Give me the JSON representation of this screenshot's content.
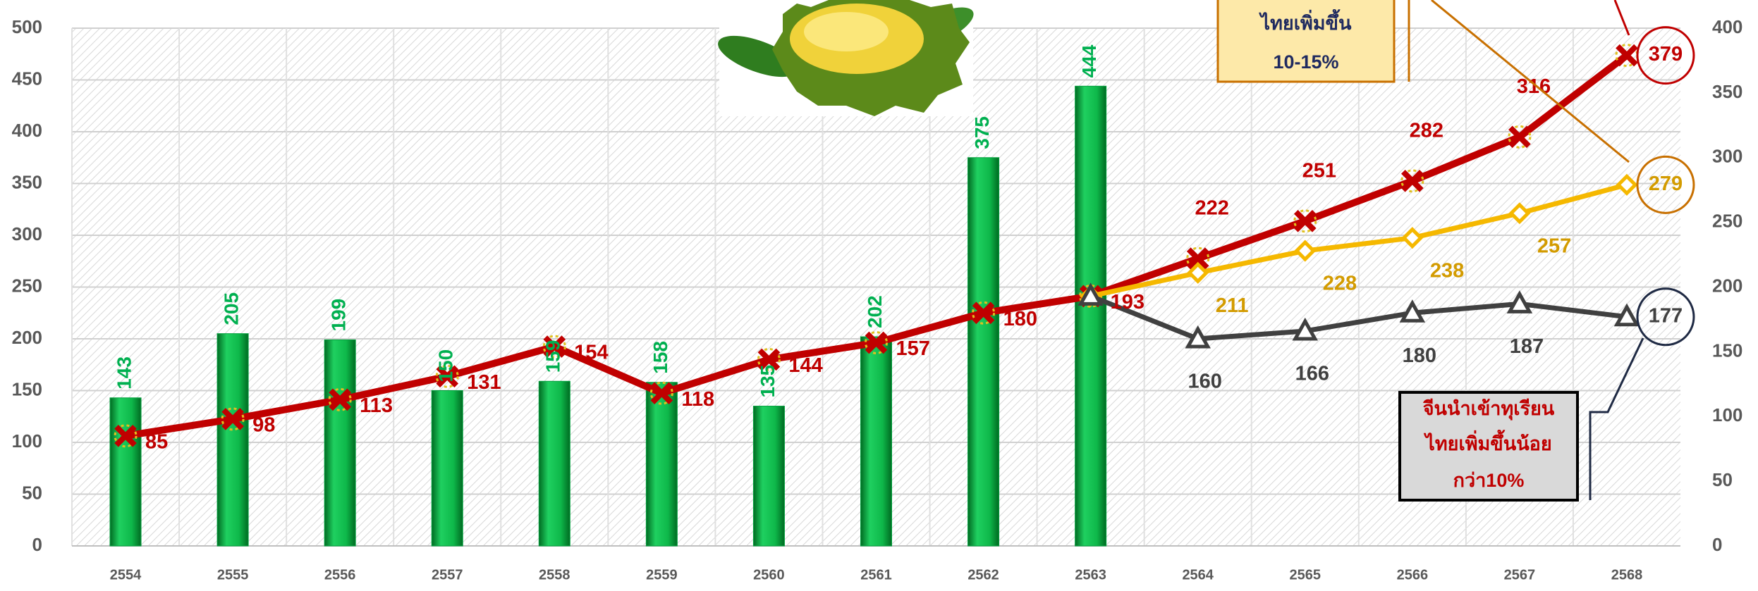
{
  "chart_data": {
    "type": "combo",
    "categories": [
      "2554",
      "2555",
      "2556",
      "2557",
      "2558",
      "2559",
      "2560",
      "2561",
      "2562",
      "2563",
      "2564",
      "2565",
      "2566",
      "2567",
      "2568"
    ],
    "ylim": [
      0,
      500
    ],
    "yticks": [
      0,
      50,
      100,
      150,
      200,
      250,
      300,
      350,
      400,
      450,
      500
    ],
    "y2lim": [
      0,
      400
    ],
    "y2ticks": [
      0,
      50,
      100,
      150,
      200,
      250,
      300,
      350,
      400
    ],
    "grid": true,
    "series": [
      {
        "type": "bar",
        "color": "#00a03c",
        "label_color": "#00b050",
        "values": [
          143,
          205,
          199,
          150,
          159,
          158,
          135,
          202,
          375,
          444,
          null,
          null,
          null,
          null,
          null
        ]
      },
      {
        "type": "line",
        "axis": "y2",
        "color": "#c00000",
        "marker": "x",
        "values": [
          85,
          98,
          113,
          131,
          154,
          118,
          144,
          157,
          180,
          193,
          222,
          251,
          282,
          316,
          379
        ]
      },
      {
        "type": "line",
        "axis": "y2",
        "color": "#f5b800",
        "label_color": "#d39b00",
        "marker": "diamond",
        "values": [
          null,
          null,
          null,
          null,
          null,
          null,
          null,
          null,
          null,
          193,
          211,
          228,
          238,
          257,
          279
        ]
      },
      {
        "type": "line",
        "axis": "y2",
        "color": "#404040",
        "marker": "triangle",
        "values": [
          null,
          null,
          null,
          null,
          null,
          null,
          null,
          null,
          null,
          193,
          160,
          166,
          180,
          187,
          177
        ]
      }
    ],
    "annotations": [
      {
        "lines": [
          "ไทยเพิ่มขึ้น",
          "10-15%"
        ]
      },
      {
        "lines": [
          "จีนนำเข้าทุเรียน",
          "ไทยเพิ่มขึ้นน้อย",
          "กว่า10%"
        ]
      }
    ]
  }
}
